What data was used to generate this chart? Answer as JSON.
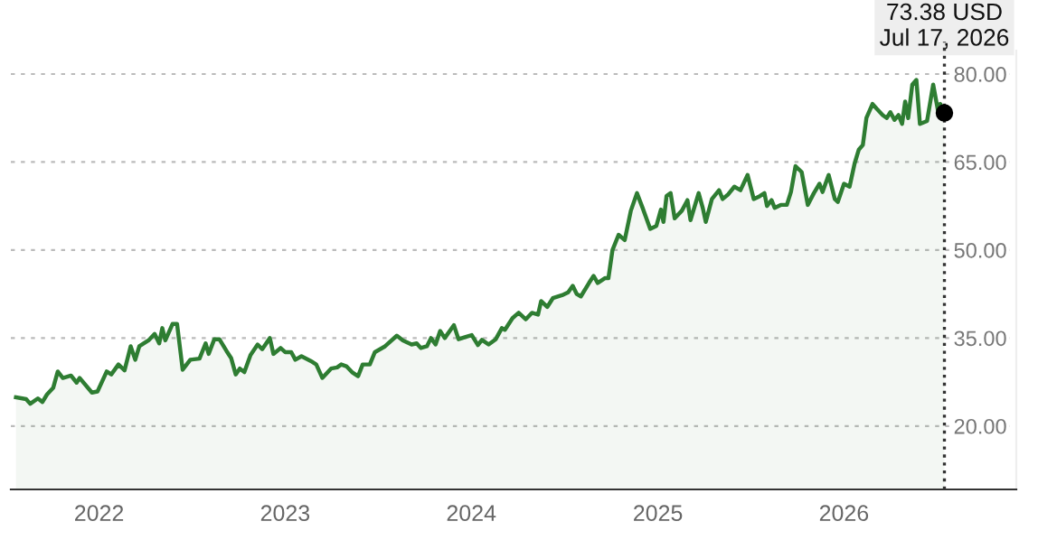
{
  "chart_data": {
    "type": "area",
    "x": [
      "2021-07-22",
      "2021-08-11",
      "2021-08-19",
      "2021-09-03",
      "2021-09-12",
      "2021-09-21",
      "2021-10-03",
      "2021-10-12",
      "2021-10-22",
      "2021-11-07",
      "2021-11-18",
      "2021-11-24",
      "2021-12-18",
      "2021-12-29",
      "2022-01-16",
      "2022-01-25",
      "2022-02-08",
      "2022-02-20",
      "2022-03-04",
      "2022-03-13",
      "2022-03-21",
      "2022-04-08",
      "2022-04-20",
      "2022-04-29",
      "2022-05-05",
      "2022-05-11",
      "2022-05-25",
      "2022-06-03",
      "2022-06-14",
      "2022-06-29",
      "2022-07-17",
      "2022-07-29",
      "2022-08-04",
      "2022-08-15",
      "2022-08-25",
      "2022-09-08",
      "2022-09-17",
      "2022-09-26",
      "2022-10-04",
      "2022-10-13",
      "2022-10-25",
      "2022-11-08",
      "2022-11-17",
      "2022-12-02",
      "2022-12-09",
      "2022-12-23",
      "2023-01-01",
      "2023-01-13",
      "2023-01-21",
      "2023-02-02",
      "2023-02-20",
      "2023-03-03",
      "2023-03-15",
      "2023-04-01",
      "2023-04-13",
      "2023-04-21",
      "2023-05-01",
      "2023-05-12",
      "2023-05-24",
      "2023-06-02",
      "2023-06-16",
      "2023-06-26",
      "2023-07-16",
      "2023-08-08",
      "2023-08-20",
      "2023-09-06",
      "2023-09-16",
      "2023-09-24",
      "2023-10-06",
      "2023-10-14",
      "2023-10-23",
      "2023-11-01",
      "2023-11-10",
      "2023-11-28",
      "2023-12-07",
      "2023-12-21",
      "2024-01-02",
      "2024-01-14",
      "2024-01-22",
      "2024-02-04",
      "2024-02-18",
      "2024-03-01",
      "2024-03-07",
      "2024-03-22",
      "2024-04-03",
      "2024-04-17",
      "2024-04-29",
      "2024-05-11",
      "2024-05-17",
      "2024-05-29",
      "2024-06-09",
      "2024-06-27",
      "2024-07-09",
      "2024-07-18",
      "2024-07-26",
      "2024-08-03",
      "2024-08-19",
      "2024-08-28",
      "2024-09-05",
      "2024-09-19",
      "2024-09-26",
      "2024-10-04",
      "2024-10-16",
      "2024-10-28",
      "2024-11-09",
      "2024-11-21",
      "2024-12-02",
      "2024-12-17",
      "2024-12-29",
      "2025-01-07",
      "2025-01-12",
      "2025-01-18",
      "2025-01-26",
      "2025-02-03",
      "2025-02-17",
      "2025-02-28",
      "2025-03-06",
      "2025-03-22",
      "2025-03-30",
      "2025-04-05",
      "2025-04-17",
      "2025-05-01",
      "2025-05-08",
      "2025-05-19",
      "2025-05-31",
      "2025-06-12",
      "2025-06-26",
      "2025-07-08",
      "2025-07-20",
      "2025-07-29",
      "2025-08-03",
      "2025-08-12",
      "2025-08-18",
      "2025-08-30",
      "2025-09-11",
      "2025-09-19",
      "2025-09-28",
      "2025-10-10",
      "2025-10-22",
      "2025-11-03",
      "2025-11-14",
      "2025-11-20",
      "2025-12-02",
      "2025-12-14",
      "2025-12-20",
      "2026-01-01",
      "2026-01-12",
      "2026-01-22",
      "2026-01-30",
      "2026-02-07",
      "2026-02-14",
      "2026-02-26",
      "2026-03-06",
      "2026-03-18",
      "2026-03-26",
      "2026-04-02",
      "2026-04-10",
      "2026-04-18",
      "2026-04-25",
      "2026-05-01",
      "2026-05-07",
      "2026-05-15",
      "2026-05-23",
      "2026-05-30",
      "2026-06-13",
      "2026-06-25",
      "2026-07-05",
      "2026-07-09",
      "2026-07-17"
    ],
    "series": [
      {
        "color": "#2e7d32",
        "values": [
          24.9,
          24.6,
          23.8,
          24.7,
          24.1,
          25.4,
          26.5,
          29.3,
          28.2,
          28.6,
          27.4,
          28.2,
          25.7,
          25.9,
          29.3,
          28.8,
          30.5,
          29.5,
          33.6,
          31.3,
          33.6,
          34.6,
          35.7,
          34.1,
          36.7,
          34.6,
          37.4,
          37.4,
          29.6,
          31.3,
          31.5,
          34.1,
          32.3,
          34.8,
          34.8,
          32.8,
          31.6,
          28.8,
          29.8,
          29.2,
          32.1,
          33.9,
          33.1,
          35.0,
          32.3,
          33.3,
          32.6,
          32.6,
          31.3,
          31.9,
          31.1,
          30.5,
          28.2,
          29.8,
          30.0,
          30.5,
          30.2,
          29.2,
          28.5,
          30.5,
          30.5,
          32.6,
          33.6,
          35.4,
          34.6,
          33.9,
          34.1,
          33.3,
          33.6,
          35.0,
          33.9,
          36.2,
          35.0,
          37.2,
          34.8,
          35.2,
          35.5,
          33.8,
          34.7,
          33.9,
          34.8,
          36.7,
          36.4,
          38.4,
          39.3,
          38.2,
          39.3,
          39.0,
          41.3,
          40.3,
          41.8,
          42.3,
          42.8,
          43.9,
          42.5,
          42.1,
          44.4,
          45.6,
          44.4,
          45.2,
          45.2,
          50.0,
          52.6,
          51.7,
          56.7,
          59.7,
          57.2,
          53.6,
          54.1,
          56.9,
          54.8,
          59.2,
          59.7,
          55.4,
          56.7,
          58.5,
          55.1,
          59.7,
          57.2,
          54.8,
          58.7,
          60.2,
          58.7,
          59.5,
          60.8,
          60.2,
          62.8,
          58.7,
          59.2,
          59.7,
          57.5,
          58.5,
          57.2,
          57.7,
          57.7,
          59.9,
          64.3,
          63.3,
          57.7,
          59.7,
          61.3,
          59.9,
          62.8,
          58.7,
          58.2,
          61.3,
          60.8,
          64.8,
          67.1,
          67.9,
          72.5,
          74.9,
          74.1,
          73.0,
          72.5,
          73.5,
          72.2,
          73.0,
          71.5,
          75.3,
          72.5,
          78.2,
          79.0,
          71.5,
          72.0,
          78.2,
          73.5,
          74.9,
          73.38
        ]
      }
    ],
    "xlim": [
      "2021-07-12",
      "2026-12-05"
    ],
    "xticks": [
      {
        "value": "2022-01-01",
        "label": "2022"
      },
      {
        "value": "2023-01-01",
        "label": "2023"
      },
      {
        "value": "2024-01-01",
        "label": "2024"
      },
      {
        "value": "2025-01-01",
        "label": "2025"
      },
      {
        "value": "2026-01-01",
        "label": "2026"
      }
    ],
    "ylim": [
      9.2,
      84
    ],
    "yticks": [
      {
        "value": 20,
        "label": "20.00"
      },
      {
        "value": 35,
        "label": "35.00"
      },
      {
        "value": 50,
        "label": "50.00"
      },
      {
        "value": 65,
        "label": "65.00"
      },
      {
        "value": 80,
        "label": "80.00"
      }
    ],
    "grid": "y",
    "ref_lines": [
      {
        "axis": "x",
        "value": "2026-07-17",
        "color": "#333333",
        "line_style": "dotted"
      }
    ],
    "annotations": [
      {
        "text": "73.38 USD\nJul 17, 2026",
        "x": "2026-07-17",
        "y": 73.38
      }
    ]
  }
}
